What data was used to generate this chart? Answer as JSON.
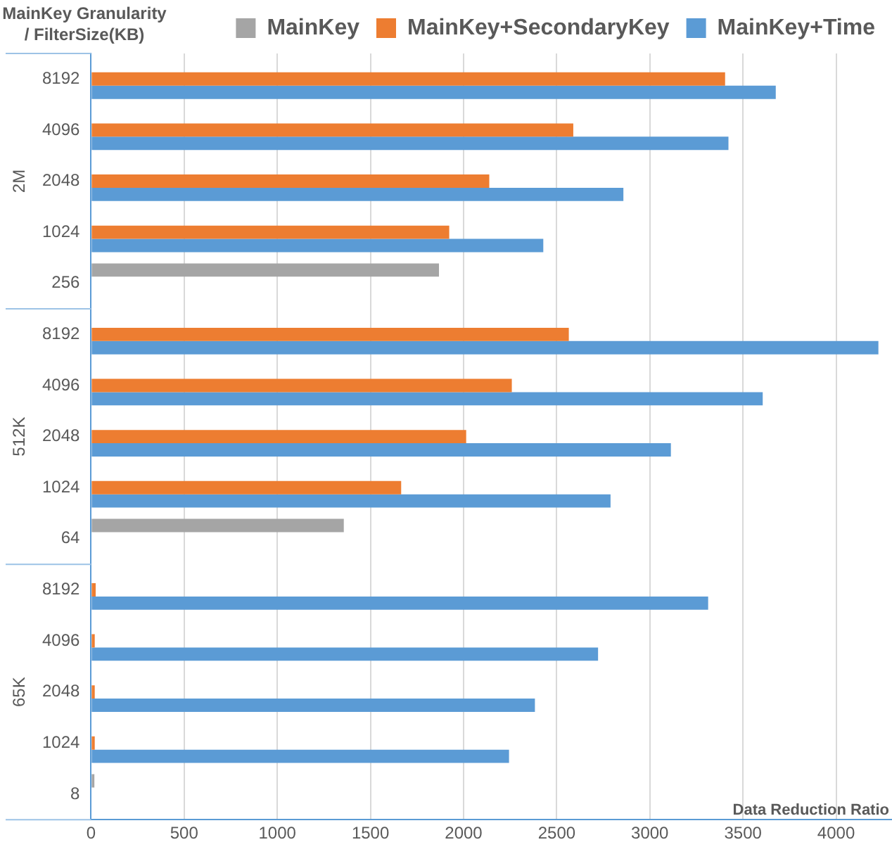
{
  "chart_data": {
    "type": "bar",
    "orientation": "horizontal",
    "ylabel": "MainKey Granularity / FilterSize(KB)",
    "xlabel": "Data Reduction Ratio",
    "categories": [
      "8192",
      "4096",
      "2048",
      "1024",
      "256",
      "8192",
      "4096",
      "2048",
      "1024",
      "64",
      "8192",
      "4096",
      "2048",
      "1024",
      "8"
    ],
    "series": [
      {
        "name": "MainKey",
        "color": "#a5a5a5",
        "values": [
          null,
          null,
          null,
          null,
          1868,
          null,
          null,
          null,
          null,
          1357,
          null,
          null,
          null,
          null,
          18
        ]
      },
      {
        "name": "MainKey+SecondaryKey",
        "color": "#ed7d31",
        "values": [
          3404,
          2589,
          2138,
          1923,
          null,
          2565,
          2259,
          2014,
          1665,
          null,
          25,
          20,
          20,
          20,
          null
        ]
      },
      {
        "name": "MainKey+Time",
        "color": "#5b9bd5",
        "values": [
          3676,
          3422,
          2858,
          2428,
          null,
          4227,
          3606,
          3113,
          2789,
          null,
          3313,
          2722,
          2383,
          2244,
          null
        ]
      }
    ],
    "annotations": [
      "2M",
      "512K",
      "65K"
    ],
    "xlim": [
      0,
      4300
    ],
    "xticks": [
      0,
      500,
      1000,
      1500,
      2000,
      2500,
      3000,
      3500,
      4000
    ],
    "grid": "x",
    "legend": "top right"
  }
}
